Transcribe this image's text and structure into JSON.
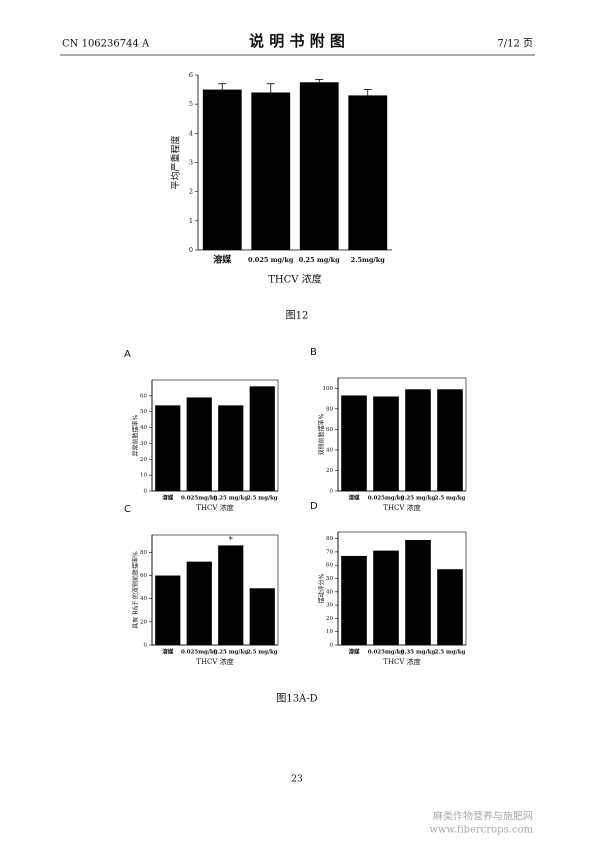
{
  "header": {
    "left": "CN 106236744 A",
    "title": "说 明 书 附 图",
    "right": "7/12 页"
  },
  "chart_data": [
    {
      "type": "bar",
      "ylabel": "平均严重程度",
      "xlabel": "THCV 浓度",
      "categories": [
        "溶媒",
        "0.025 mg/kg",
        "0.25 mg/kg",
        "2.5mg/kg"
      ],
      "values": [
        5.5,
        5.4,
        5.75,
        5.3
      ],
      "errors": [
        0.2,
        0.3,
        0.1,
        0.2
      ],
      "ylim": [
        0,
        6
      ],
      "yticks": [
        0,
        1,
        2,
        3,
        4,
        5,
        6
      ],
      "color": "#000000"
    },
    {
      "type": "bar",
      "panel": "A",
      "ylabel": "异常前肢摆率%",
      "xlabel": "THCV 浓度",
      "categories": [
        "溶媒",
        "0.025mg/kg",
        "0.25 mg/kg",
        "2.5 mg/kg"
      ],
      "values": [
        54,
        59,
        54,
        66
      ],
      "ylim": [
        0,
        70
      ],
      "yticks": [
        0,
        10,
        20,
        30,
        40,
        50,
        60
      ],
      "color": "#000000"
    },
    {
      "type": "bar",
      "panel": "B",
      "ylabel": "双侧前肢摆率%",
      "xlabel": "THCV 浓度",
      "categories": [
        "溶媒",
        "0.025mg/kg",
        "0.25 mg/kg",
        "2.5 mg/kg"
      ],
      "values": [
        93,
        92,
        99,
        99
      ],
      "ylim": [
        0,
        110
      ],
      "yticks": [
        0,
        20,
        40,
        60,
        80,
        100
      ],
      "color": "#000000"
    },
    {
      "type": "bar",
      "panel": "C",
      "ylabel": "具有 R&F 的双侧前肢摆率%",
      "xlabel": "THCV 浓度",
      "categories": [
        "溶媒",
        "0.025mg/kg",
        "0.25 mg/kg",
        "2.5 mg/kg"
      ],
      "values": [
        60,
        72,
        86,
        49
      ],
      "markers": [
        null,
        null,
        "*",
        null
      ],
      "ylim": [
        0,
        95
      ],
      "yticks": [
        0,
        20,
        40,
        60,
        80
      ],
      "color": "#000000"
    },
    {
      "type": "bar",
      "panel": "D",
      "ylabel": "摆动评分%",
      "xlabel": "THCV 浓度",
      "categories": [
        "溶媒",
        "0.025mg/kg",
        "0.35 mg/kg",
        "2.5 mg/kg"
      ],
      "values": [
        67,
        71,
        79,
        57
      ],
      "ylim": [
        0,
        85
      ],
      "yticks": [
        0,
        10,
        20,
        30,
        40,
        50,
        60,
        70,
        80
      ],
      "color": "#000000"
    }
  ],
  "captions": [
    "图12",
    "图13A-D"
  ],
  "page_number": "23",
  "watermark": [
    "麻类作物营养与施肥网",
    "www.fibercrops.com"
  ]
}
